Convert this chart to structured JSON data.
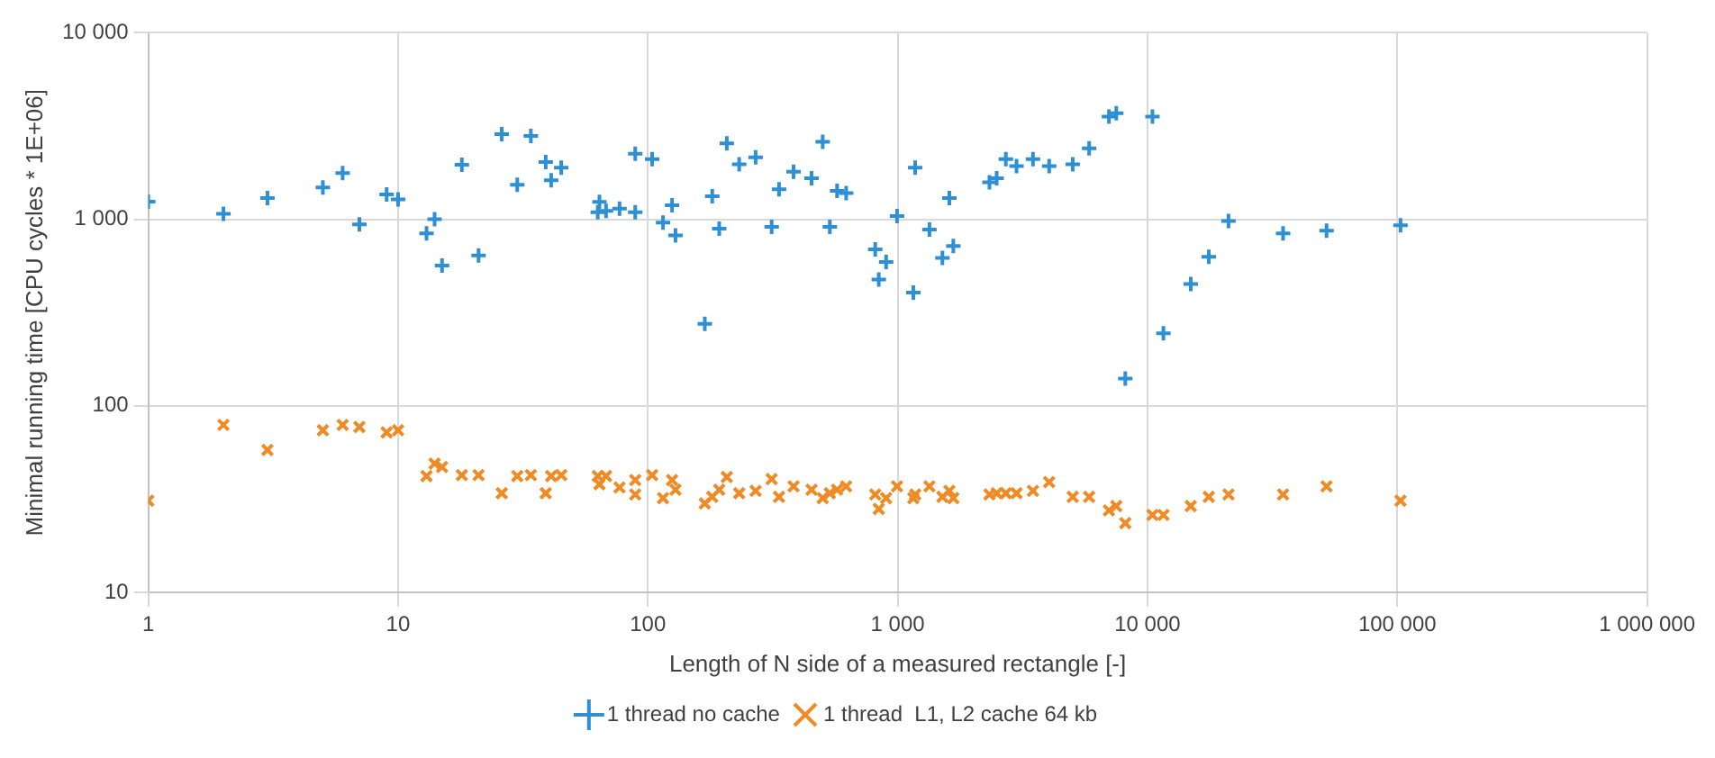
{
  "chart_data": {
    "type": "scatter",
    "xlabel": "Length of N side of a measured rectangle [-]",
    "ylabel": "Minimal running time [CPU cycles * 1E+06]",
    "log": "xy",
    "grid": true,
    "legend": "bottom",
    "xlim": [
      1,
      1000000
    ],
    "xticks": [
      1,
      10,
      100,
      {
        "value": 1000,
        "label": "1 000"
      },
      {
        "value": 10000,
        "label": "10 000"
      },
      {
        "value": 100000,
        "label": "100 000"
      },
      {
        "value": 1000000,
        "label": "1 000 000"
      }
    ],
    "ylim": [
      10,
      10000
    ],
    "yticks": [
      10,
      100,
      {
        "value": 1000,
        "label": "1 000"
      },
      {
        "value": 10000,
        "label": "10 000"
      }
    ],
    "x": [
      1,
      2,
      3,
      5,
      6,
      7,
      9,
      10,
      13,
      14,
      15,
      18,
      21,
      26,
      30,
      34,
      39,
      41,
      45,
      63,
      64,
      68,
      77,
      89,
      89,
      104,
      115,
      125,
      129,
      169,
      181,
      193,
      207,
      232,
      270,
      313,
      335,
      383,
      452,
      501,
      535,
      572,
      622,
      813,
      840,
      899,
      994,
      1155,
      1175,
      1340,
      1510,
      1610,
      1670,
      2330,
      2490,
      2710,
      2990,
      3480,
      4040,
      5020,
      5840,
      7010,
      7500,
      8150,
      10470,
      11580,
      14900,
      17600,
      21100,
      34900,
      52100,
      103000
    ],
    "series": [
      {
        "name": "1 thread no cache",
        "color": "#2e8fd4",
        "marker": "cross",
        "values": [
          1245,
          1070,
          1300,
          1480,
          1770,
          940,
          1360,
          1280,
          840,
          1000,
          565,
          1960,
          640,
          2860,
          1530,
          2800,
          2030,
          1620,
          1890,
          1090,
          1240,
          1110,
          1140,
          1090,
          2250,
          2100,
          960,
          1190,
          820,
          275,
          1330,
          890,
          2550,
          1970,
          2150,
          910,
          1450,
          1800,
          1660,
          2600,
          910,
          1420,
          1380,
          690,
          475,
          590,
          1040,
          405,
          1890,
          880,
          620,
          1300,
          720,
          1580,
          1660,
          2100,
          1930,
          2100,
          1930,
          1970,
          2400,
          3550,
          3700,
          140,
          3550,
          245,
          450,
          630,
          980,
          840,
          870,
          930
        ]
      },
      {
        "name": "1 thread  L1, L2 cache 64 kb",
        "color": "#f08a24",
        "marker": "x",
        "values": [
          31,
          79,
          58,
          74,
          79,
          77,
          72,
          74,
          42,
          49,
          47,
          42.5,
          42.5,
          34,
          42,
          42.5,
          34,
          42,
          42.5,
          42,
          38,
          42,
          36.5,
          33.5,
          40,
          42.5,
          32,
          40,
          35.5,
          30,
          32.5,
          35.5,
          41.5,
          34,
          35,
          40.5,
          32.5,
          37,
          35.5,
          32,
          34,
          35.5,
          37,
          33.5,
          28,
          32,
          37,
          32,
          33.5,
          37,
          32.5,
          35,
          32,
          33.5,
          34,
          34,
          34,
          35,
          39,
          32.5,
          32.5,
          27.5,
          29,
          23.5,
          26,
          26,
          29,
          32.5,
          33.5,
          33.5,
          37,
          31
        ]
      }
    ]
  }
}
